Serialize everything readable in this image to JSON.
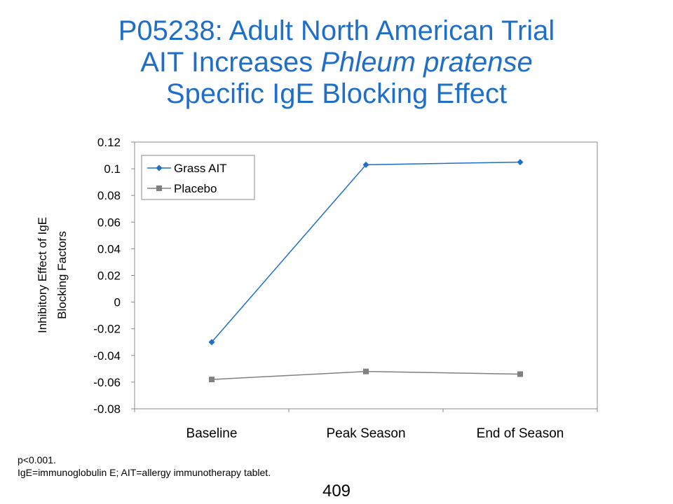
{
  "slide": {
    "title_line1": "P05238: Adult North American Trial",
    "title_line2_prefix": "AIT Increases ",
    "title_line2_italic": "Phleum pratense",
    "title_line3": "Specific IgE Blocking Effect",
    "footnote_line1": "p<0.001.",
    "footnote_line2": "IgE=immunoglobulin E; AIT=allergy immunotherapy tablet.",
    "page_number": "409",
    "title_color": "#1f6fc8"
  },
  "chart_data": {
    "type": "line",
    "categories": [
      "Baseline",
      "Peak Season",
      "End of Season"
    ],
    "series": [
      {
        "name": "Grass AIT",
        "values": [
          -0.03,
          0.103,
          0.105
        ],
        "color": "#1f6fc8",
        "marker": "diamond"
      },
      {
        "name": "Placebo",
        "values": [
          -0.058,
          -0.052,
          -0.054
        ],
        "color": "#808080",
        "marker": "square"
      }
    ],
    "ylabel_line1": "Inhibitory Effect of IgE",
    "ylabel_line2": "Blocking Factors",
    "ylim": [
      -0.08,
      0.12
    ],
    "yticks": [
      "-0.08",
      "-0.06",
      "-0.04",
      "-0.02",
      "0",
      "0.02",
      "0.04",
      "0.06",
      "0.08",
      "0.1",
      "0.12"
    ],
    "grid": false,
    "legend_position": "top-left"
  }
}
